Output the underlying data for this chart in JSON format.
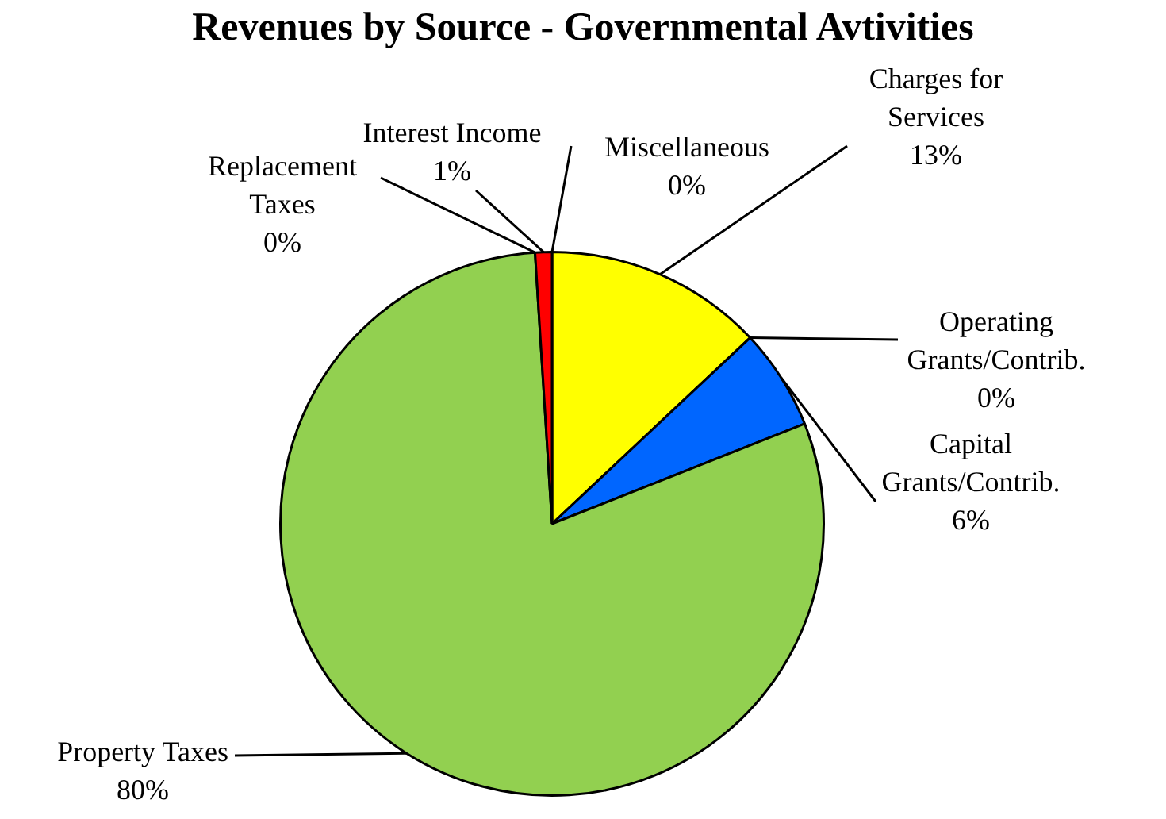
{
  "chart_data": {
    "type": "pie",
    "title": "Revenues by Source - Governmental Avtivities",
    "categories": [
      "Miscellaneous",
      "Charges for Services",
      "Operating Grants/Contrib.",
      "Capital Grants/Contrib.",
      "Property Taxes",
      "Replacement Taxes",
      "Interest Income"
    ],
    "values": [
      0,
      13,
      0,
      6,
      80,
      0,
      1
    ],
    "value_labels": [
      "0%",
      "13%",
      "0%",
      "6%",
      "80%",
      "0%",
      "1%"
    ],
    "colors": [
      "#7f7f7f",
      "#ffff00",
      "#00b050",
      "#0066ff",
      "#92d050",
      "#000000",
      "#ff0000"
    ]
  }
}
